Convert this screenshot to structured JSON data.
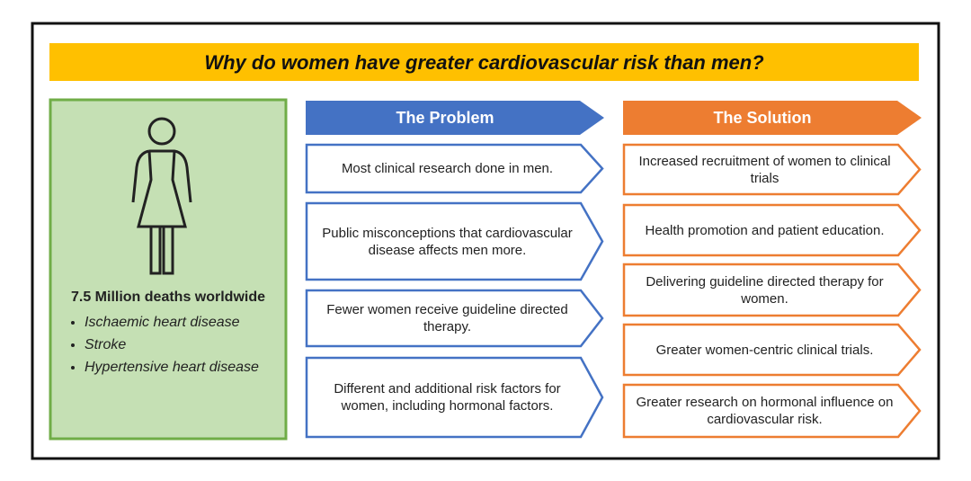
{
  "title": "Why do women have greater cardiovascular risk than men?",
  "left_panel": {
    "headline": "7.5 Million deaths worldwide",
    "bullets": [
      "Ischaemic heart disease",
      "Stroke",
      "Hypertensive heart disease"
    ]
  },
  "problem": {
    "header": "The Problem",
    "items": [
      "Most clinical research done in men.",
      "Public misconceptions that cardiovascular disease affects men more.",
      "Fewer women receive guideline directed therapy.",
      "Different and additional risk factors for women, including hormonal factors."
    ]
  },
  "solution": {
    "header": "The Solution",
    "items": [
      "Increased recruitment of women to clinical trials",
      "Health promotion and patient education.",
      "Delivering guideline directed therapy for women.",
      "Greater women-centric clinical trials.",
      "Greater research on hormonal influence on cardiovascular risk."
    ]
  }
}
